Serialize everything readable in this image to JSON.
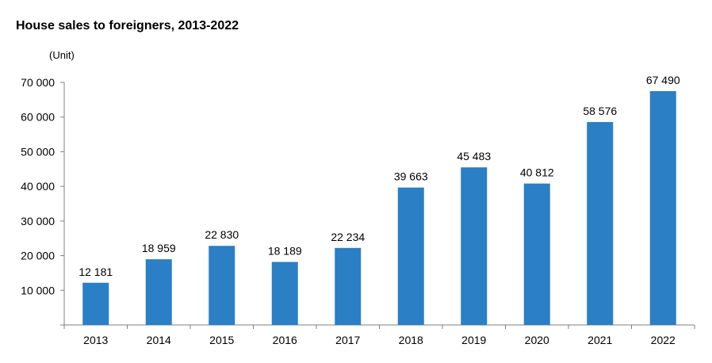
{
  "chart_data": {
    "type": "bar",
    "title": "House sales to foreigners, 2013-2022",
    "unit_label": "(Unit)",
    "categories": [
      "2013",
      "2014",
      "2015",
      "2016",
      "2017",
      "2018",
      "2019",
      "2020",
      "2021",
      "2022"
    ],
    "values": [
      12181,
      18959,
      22830,
      18189,
      22234,
      39663,
      45483,
      40812,
      58576,
      67490
    ],
    "data_labels": [
      "12 181",
      "18 959",
      "22 830",
      "18 189",
      "22 234",
      "39 663",
      "45 483",
      "40 812",
      "58 576",
      "67 490"
    ],
    "ylim": [
      0,
      70000
    ],
    "yticks": [
      10000,
      20000,
      30000,
      40000,
      50000,
      60000,
      70000
    ],
    "ytick_labels": [
      "10 000",
      "20 000",
      "30 000",
      "40 000",
      "50 000",
      "60 000",
      "70 000"
    ],
    "bar_color": "#2a7fc5",
    "grid": false,
    "legend": "none"
  }
}
